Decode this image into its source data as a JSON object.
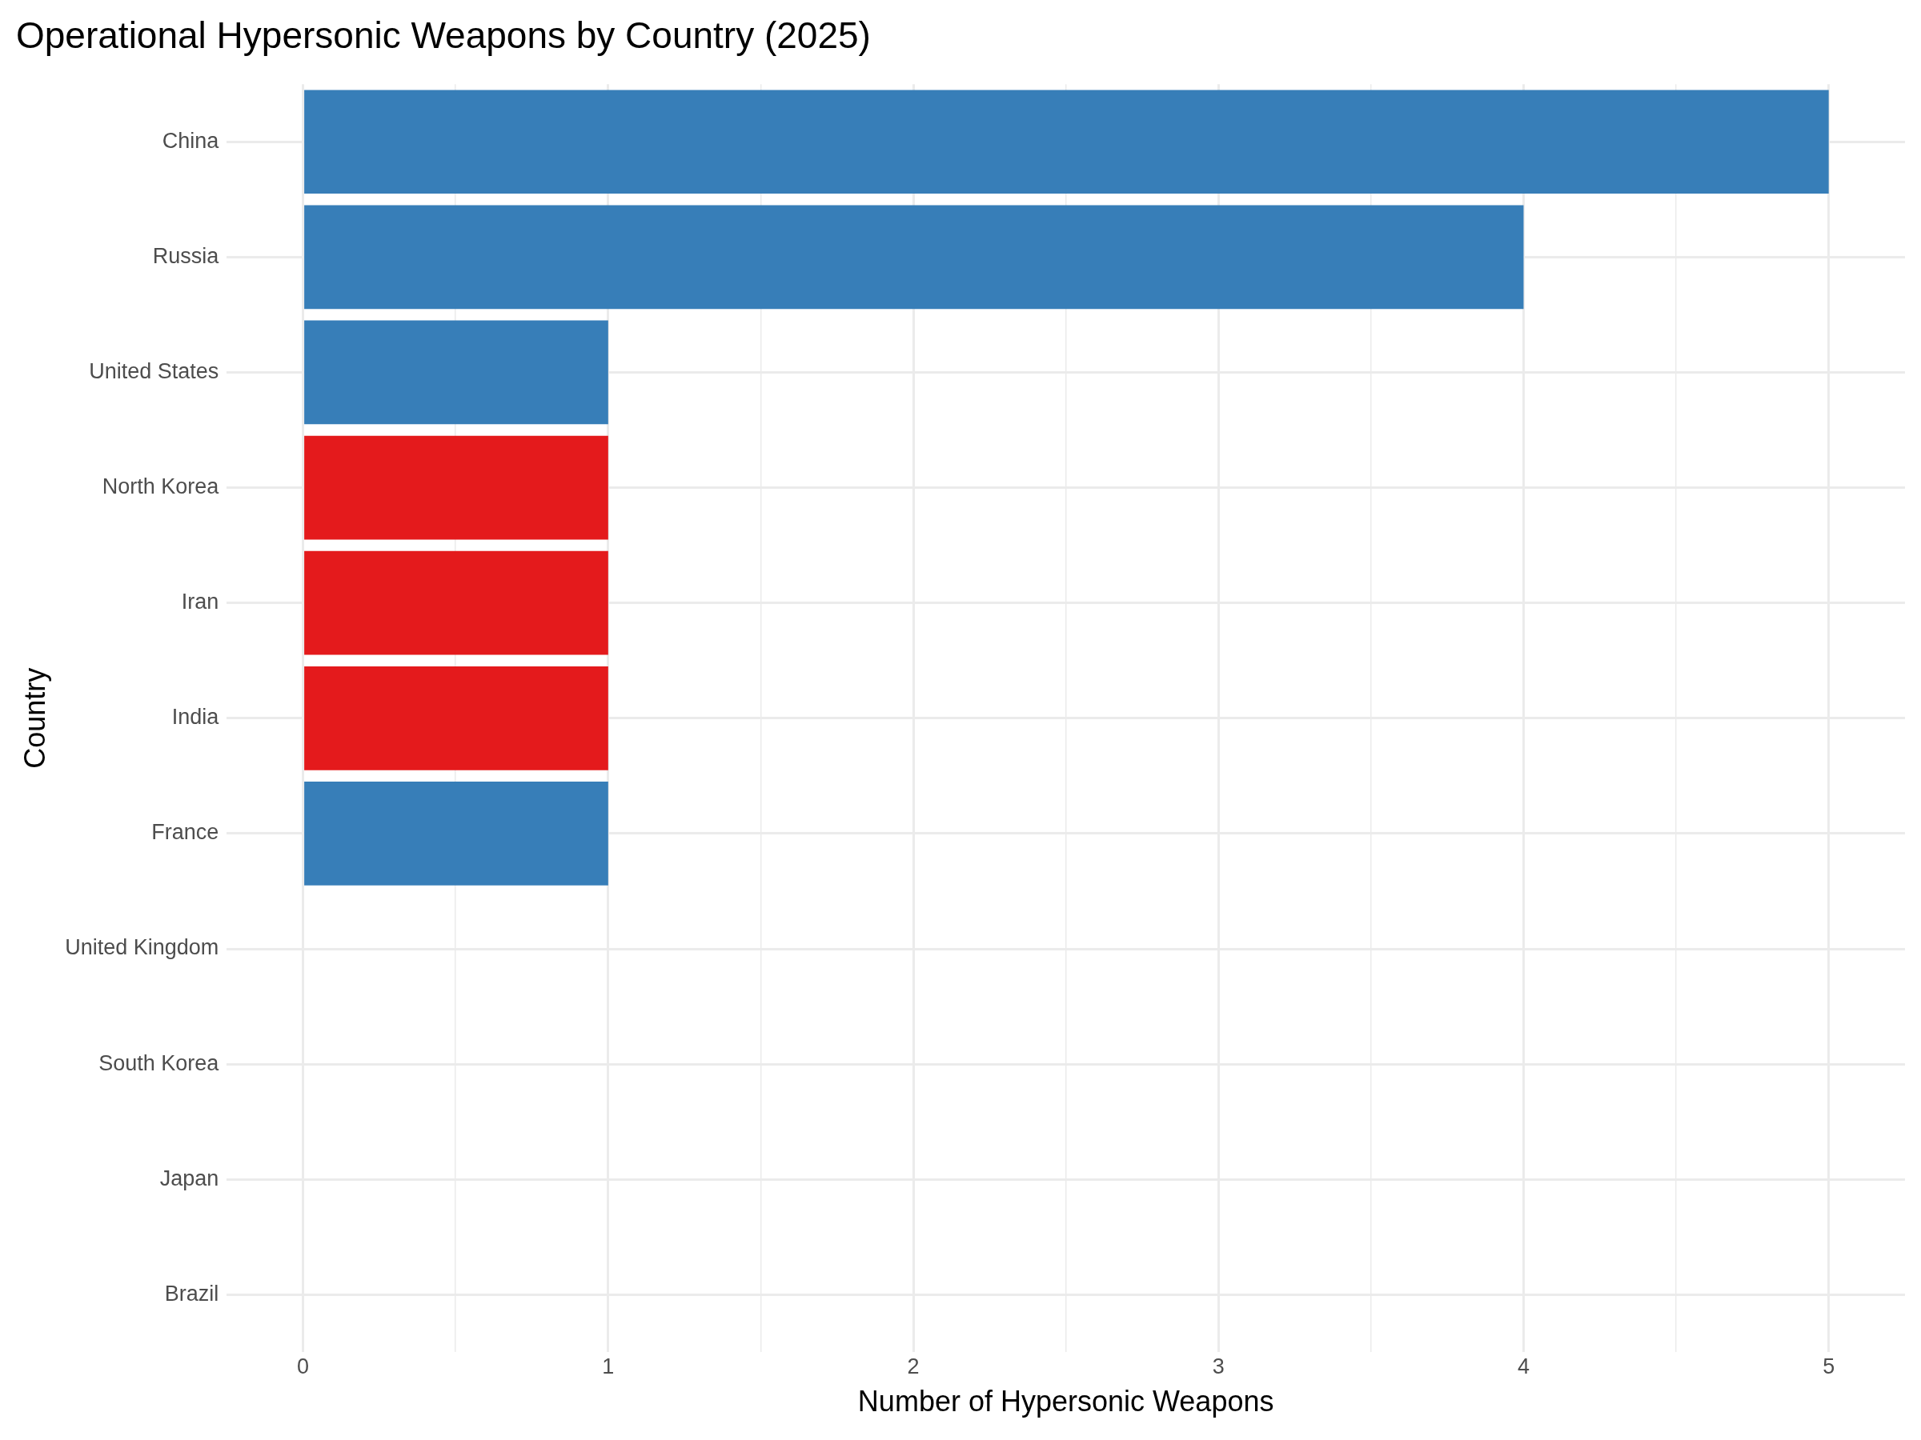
{
  "chart_data": {
    "type": "bar",
    "orientation": "horizontal",
    "title": "Operational Hypersonic Weapons by Country (2025)",
    "xlabel": "Number of Hypersonic Weapons",
    "ylabel": "Country",
    "categories": [
      "China",
      "Russia",
      "United States",
      "North Korea",
      "Iran",
      "India",
      "France",
      "United Kingdom",
      "South Korea",
      "Japan",
      "Brazil"
    ],
    "values": [
      5,
      4,
      1,
      1,
      1,
      1,
      1,
      0,
      0,
      0,
      0
    ],
    "colors": [
      "#377eb8",
      "#377eb8",
      "#377eb8",
      "#e41a1c",
      "#e41a1c",
      "#e41a1c",
      "#377eb8",
      "#377eb8",
      "#377eb8",
      "#377eb8",
      "#377eb8"
    ],
    "xlim": [
      -0.25,
      5.25
    ],
    "xticks": [
      0,
      {
        "value": 0.5,
        "label": null
      },
      1,
      {
        "value": 1.5,
        "label": null
      },
      2,
      {
        "value": 2.5,
        "label": null
      },
      3,
      {
        "value": 3.5,
        "label": null
      },
      4,
      {
        "value": 4.5,
        "label": null
      },
      5
    ],
    "grid": true,
    "legend": false
  }
}
